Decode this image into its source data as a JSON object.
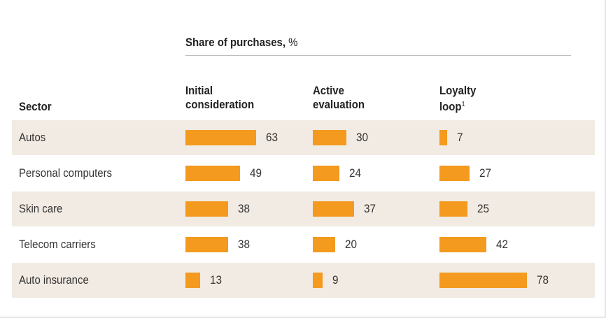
{
  "chart_data": {
    "type": "bar",
    "title_bold": "Share of purchases,",
    "title_unit": "%",
    "row_header": "Sector",
    "columns": [
      {
        "label_line1": "Initial",
        "label_line2": "consideration",
        "footnote": ""
      },
      {
        "label_line1": "Active",
        "label_line2": "evaluation",
        "footnote": ""
      },
      {
        "label_line1": "Loyalty",
        "label_line2": "loop",
        "footnote": "1"
      }
    ],
    "categories": [
      "Autos",
      "Personal computers",
      "Skin care",
      "Telecom carriers",
      "Auto insurance"
    ],
    "series": [
      {
        "name": "Initial consideration",
        "values": [
          63,
          49,
          38,
          38,
          13
        ]
      },
      {
        "name": "Active evaluation",
        "values": [
          30,
          24,
          37,
          20,
          9
        ]
      },
      {
        "name": "Loyalty loop",
        "values": [
          7,
          27,
          25,
          42,
          78
        ]
      }
    ],
    "bar_color": "#f39a1f",
    "row_shade_color": "#f2ebe3",
    "shaded_rows": [
      0,
      2,
      4
    ]
  }
}
